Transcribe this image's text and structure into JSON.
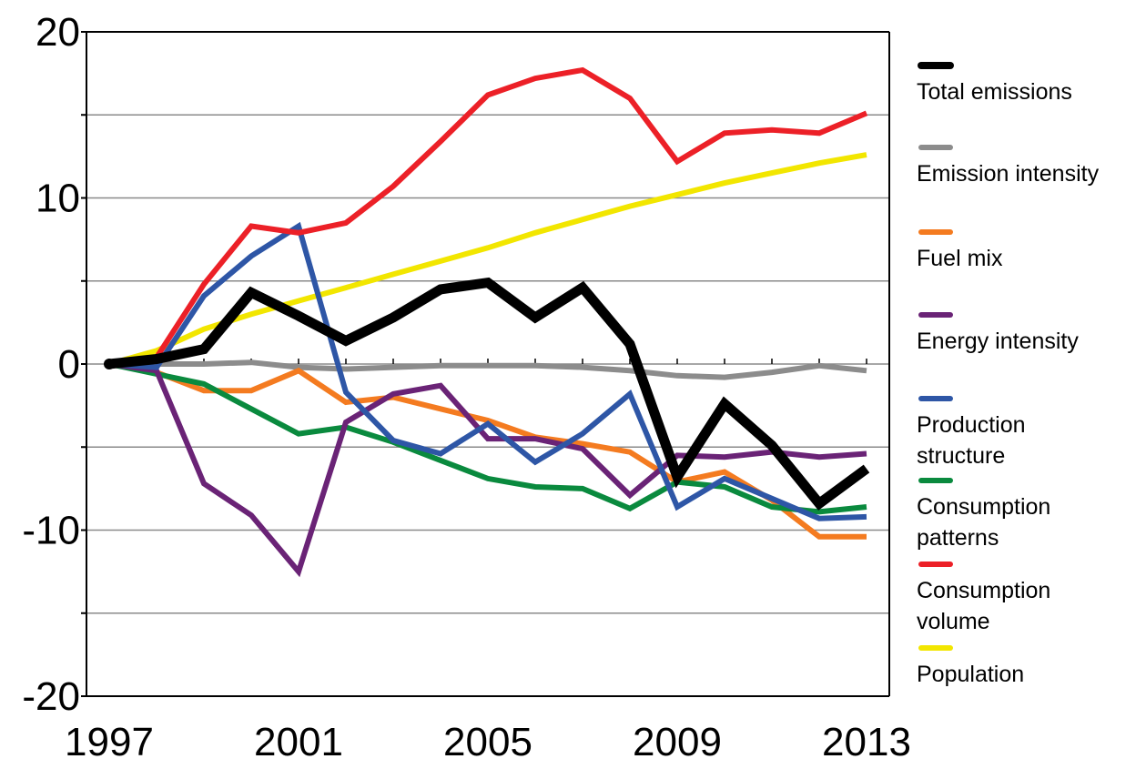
{
  "chart_data": {
    "type": "line",
    "title": "",
    "xlabel": "",
    "ylabel": "",
    "x": [
      1997,
      1998,
      1999,
      2000,
      2001,
      2002,
      2003,
      2004,
      2005,
      2006,
      2007,
      2008,
      2009,
      2010,
      2011,
      2012,
      2013
    ],
    "x_tick_labels": [
      "1997",
      "2001",
      "2005",
      "2009",
      "2013"
    ],
    "y_tick_labels": [
      "20",
      "10",
      "0",
      "-10",
      "-20"
    ],
    "ylim": [
      -20,
      20
    ],
    "xlim": [
      1997,
      2013
    ],
    "grid": "horizontal",
    "legend_position": "right",
    "series": [
      {
        "name": "Total emissions",
        "color": "#000000",
        "values": [
          0,
          0.3,
          0.9,
          4.3,
          2.9,
          1.4,
          2.8,
          4.5,
          4.9,
          2.8,
          4.6,
          1.2,
          -6.8,
          -2.4,
          -4.9,
          -8.4,
          -6.3
        ]
      },
      {
        "name": "Emission intensity",
        "color": "#8c8c8c",
        "values": [
          0,
          0,
          0,
          0.1,
          -0.2,
          -0.3,
          -0.2,
          -0.1,
          -0.1,
          -0.1,
          -0.2,
          -0.4,
          -0.7,
          -0.8,
          -0.5,
          -0.1,
          -0.4
        ]
      },
      {
        "name": "Fuel mix",
        "color": "#f47b20",
        "values": [
          0,
          -0.5,
          -1.6,
          -1.6,
          -0.4,
          -2.3,
          -2.0,
          -2.7,
          -3.4,
          -4.4,
          -4.8,
          -5.3,
          -7.1,
          -6.5,
          -8.2,
          -10.4,
          -10.4
        ]
      },
      {
        "name": "Energy intensity",
        "color": "#6a2376",
        "values": [
          0,
          -0.4,
          -7.2,
          -9.1,
          -12.5,
          -3.5,
          -1.8,
          -1.3,
          -4.5,
          -4.5,
          -5.1,
          -7.9,
          -5.5,
          -5.6,
          -5.3,
          -5.6,
          -5.4
        ]
      },
      {
        "name": "Production structure",
        "color": "#2e56a6",
        "values": [
          0,
          -0.2,
          4.1,
          6.5,
          8.3,
          -1.7,
          -4.6,
          -5.4,
          -3.6,
          -5.9,
          -4.2,
          -1.8,
          -8.6,
          -6.9,
          -8.1,
          -9.3,
          -9.2
        ]
      },
      {
        "name": "Consumption patterns",
        "color": "#0a8a3e",
        "values": [
          0,
          -0.6,
          -1.2,
          -2.7,
          -4.2,
          -3.8,
          -4.7,
          -5.8,
          -6.9,
          -7.4,
          -7.5,
          -8.7,
          -7.1,
          -7.4,
          -8.6,
          -8.9,
          -8.6
        ]
      },
      {
        "name": "Consumption volume",
        "color": "#ec2027",
        "values": [
          0,
          0.4,
          4.8,
          8.3,
          7.9,
          8.5,
          10.7,
          13.4,
          16.2,
          17.2,
          17.7,
          16.0,
          12.2,
          13.9,
          14.1,
          13.9,
          15.1
        ]
      },
      {
        "name": "Population",
        "color": "#f2e600",
        "values": [
          0,
          0.8,
          2.1,
          3.0,
          3.8,
          4.6,
          5.4,
          6.2,
          7.0,
          7.9,
          8.7,
          9.5,
          10.2,
          10.9,
          11.5,
          12.1,
          12.6
        ]
      }
    ]
  }
}
